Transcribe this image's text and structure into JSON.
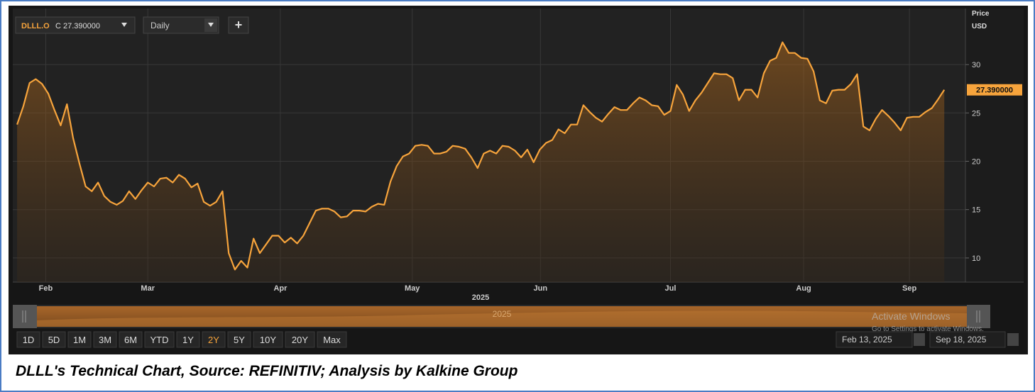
{
  "ui": {
    "symbol": "DLLL.O",
    "close": "C 27.390000",
    "interval": "Daily",
    "add": "+",
    "price_title": "Price",
    "price_unit": "USD",
    "price_tag": "27.390000",
    "year": "2025",
    "navigator_label": "2025",
    "ranges": [
      "1D",
      "5D",
      "1M",
      "3M",
      "6M",
      "YTD",
      "1Y",
      "2Y",
      "5Y",
      "10Y",
      "20Y",
      "Max"
    ],
    "selected_range": "2Y",
    "date_from": "Feb 13, 2025",
    "date_to": "Sep 18, 2025",
    "watermark_title": "Activate Windows",
    "watermark_text": "Go to Settings to activate Windows."
  },
  "caption": "DLLL's Technical Chart, Source: REFINITIV; Analysis by Kalkine Group",
  "chart_data": {
    "type": "line",
    "color": "#f7a43c",
    "grid": true,
    "values": [
      23.8,
      25.7,
      28.1,
      28.5,
      28.0,
      27.0,
      25.3,
      23.7,
      25.9,
      22.4,
      19.8,
      17.4,
      16.9,
      17.8,
      16.4,
      15.8,
      15.5,
      15.9,
      16.9,
      16.1,
      17.0,
      17.8,
      17.4,
      18.2,
      18.3,
      17.8,
      18.6,
      18.2,
      17.3,
      17.7,
      15.8,
      15.4,
      15.8,
      16.9,
      10.5,
      8.8,
      9.7,
      9.0,
      12.0,
      10.5,
      11.4,
      12.3,
      12.3,
      11.6,
      12.1,
      11.5,
      12.3,
      13.6,
      14.9,
      15.1,
      15.1,
      14.8,
      14.2,
      14.3,
      14.9,
      14.9,
      14.8,
      15.3,
      15.6,
      15.5,
      17.9,
      19.5,
      20.5,
      20.8,
      21.6,
      21.7,
      21.6,
      20.8,
      20.8,
      21.0,
      21.6,
      21.5,
      21.3,
      20.4,
      19.3,
      20.8,
      21.1,
      20.8,
      21.6,
      21.5,
      21.1,
      20.4,
      21.2,
      19.9,
      21.2,
      21.9,
      22.2,
      23.3,
      22.9,
      23.8,
      23.8,
      25.8,
      25.1,
      24.5,
      24.1,
      24.9,
      25.6,
      25.3,
      25.3,
      26.0,
      26.6,
      26.3,
      25.8,
      25.7,
      24.8,
      25.2,
      27.9,
      26.9,
      25.2,
      26.3,
      27.1,
      28.1,
      29.1,
      29.0,
      29.0,
      28.6,
      26.3,
      27.4,
      27.4,
      26.6,
      29.1,
      30.4,
      30.7,
      32.3,
      31.2,
      31.2,
      30.7,
      30.6,
      29.3,
      26.3,
      26.0,
      27.3,
      27.4,
      27.4,
      28.0,
      29.0,
      23.6,
      23.2,
      24.4,
      25.3,
      24.7,
      24.0,
      23.2,
      24.5,
      24.6,
      24.6,
      25.1,
      25.5,
      26.4,
      27.39
    ],
    "xlim": [
      -0.7,
      152.4
    ],
    "xticks": [
      {
        "value": 4.6,
        "label": "Feb"
      },
      {
        "value": 21,
        "label": "Mar"
      },
      {
        "value": 42.3,
        "label": "Apr"
      },
      {
        "value": 63.5,
        "label": "May"
      },
      {
        "value": 84.1,
        "label": "Jun"
      },
      {
        "value": 105,
        "label": "Jul"
      },
      {
        "value": 126.4,
        "label": "Aug"
      },
      {
        "value": 143.4,
        "label": "Sep"
      }
    ],
    "ylim": [
      7.5,
      35.8
    ],
    "yticks": [
      10,
      15,
      20,
      25,
      30
    ]
  }
}
